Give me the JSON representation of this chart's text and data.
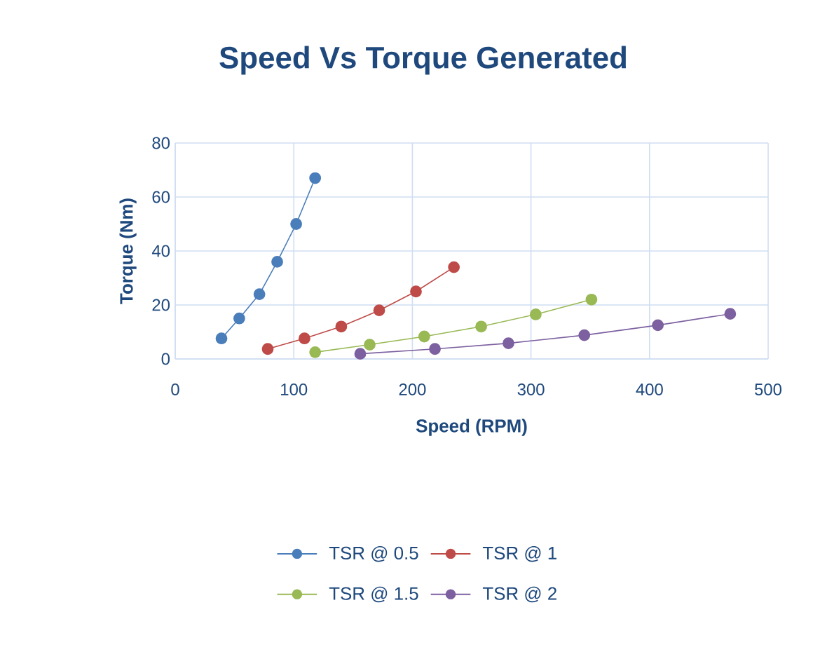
{
  "chart_data": {
    "type": "line",
    "title": "Speed Vs Torque Generated",
    "xlabel": "Speed (RPM)",
    "ylabel": "Torque (Nm)",
    "xlim": [
      0,
      500
    ],
    "xticks": [
      0,
      100,
      200,
      300,
      400,
      500
    ],
    "ylim": [
      0,
      80
    ],
    "yticks": [
      0,
      20,
      40,
      60,
      80
    ],
    "grid": true,
    "legend": "bottom",
    "marker": "circle",
    "line_style": "solid",
    "series": [
      {
        "name": "TSR @ 0.5",
        "color": "#4a7ebb",
        "x": [
          39,
          54,
          71,
          86,
          102,
          118
        ],
        "values": [
          7.6,
          15,
          24,
          36,
          50,
          67
        ]
      },
      {
        "name": "TSR @ 1",
        "color": "#be4b48",
        "x": [
          78,
          109,
          140,
          172,
          203,
          235
        ],
        "values": [
          3.7,
          7.6,
          12,
          18,
          25,
          34
        ]
      },
      {
        "name": "TSR @ 1.5",
        "color": "#98b954",
        "x": [
          118,
          164,
          210,
          258,
          304,
          351
        ],
        "values": [
          2.5,
          5.3,
          8.3,
          12,
          16.5,
          22
        ]
      },
      {
        "name": "TSR @ 2",
        "color": "#7d60a0",
        "x": [
          156,
          219,
          281,
          345,
          407,
          468
        ],
        "values": [
          1.9,
          3.7,
          5.8,
          8.8,
          12.5,
          16.7
        ]
      }
    ]
  }
}
